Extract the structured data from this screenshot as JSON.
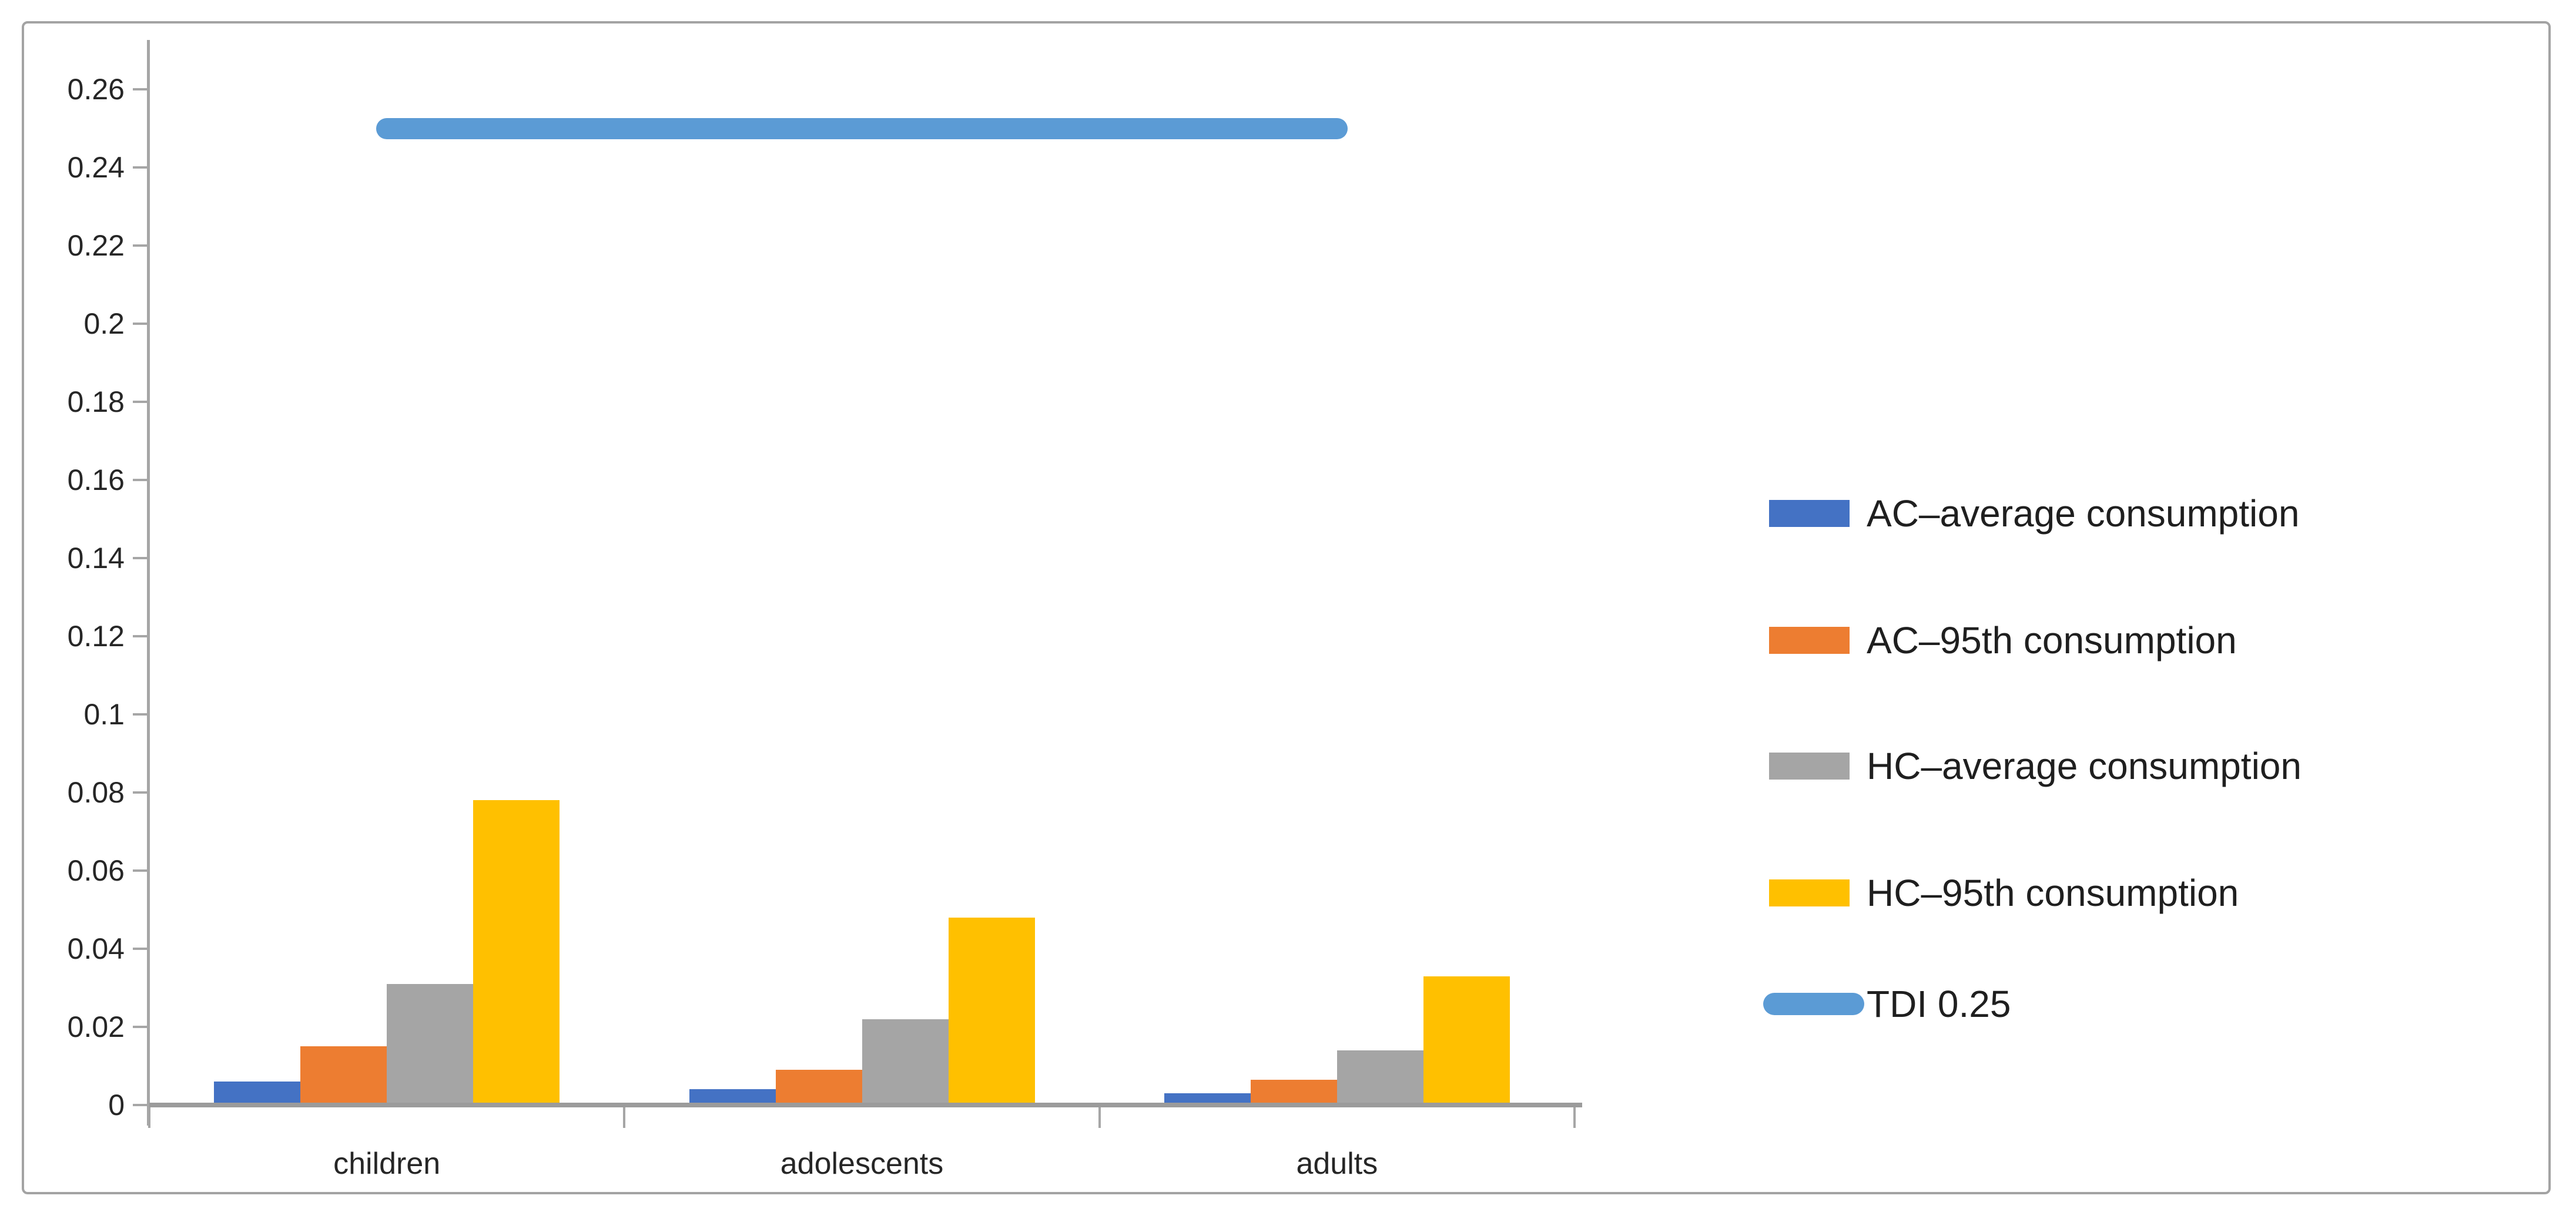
{
  "chart_data": {
    "type": "bar",
    "title": "",
    "xlabel": "",
    "ylabel": "",
    "categories": [
      "children",
      "adolescents",
      "adults"
    ],
    "series": [
      {
        "name": "AC–average consumption",
        "color": "#4472c4",
        "values": [
          0.006,
          0.004,
          0.003
        ]
      },
      {
        "name": "AC–95th consumption",
        "color": "#ed7d31",
        "values": [
          0.015,
          0.009,
          0.0065
        ]
      },
      {
        "name": "HC–average consumption",
        "color": "#a5a5a5",
        "values": [
          0.031,
          0.022,
          0.014
        ]
      },
      {
        "name": "HC–95th consumption",
        "color": "#ffc000",
        "values": [
          0.078,
          0.048,
          0.033
        ]
      }
    ],
    "line_series": {
      "name": "TDI 0.25",
      "color": "#5b9bd5",
      "value": 0.25,
      "spans_categories": [
        "children",
        "adults"
      ]
    },
    "ylim": [
      0,
      0.26
    ],
    "y_ticks": [
      "0",
      "0.02",
      "0.04",
      "0.06",
      "0.08",
      "0.1",
      "0.12",
      "0.14",
      "0.16",
      "0.18",
      "0.2",
      "0.22",
      "0.24",
      "0.26"
    ],
    "grid": false,
    "legend_position": "right"
  },
  "colors": {
    "axis": "#a6a6a6",
    "text": "#262626",
    "frame_border": "#a3a3a3",
    "background": "#ffffff"
  }
}
